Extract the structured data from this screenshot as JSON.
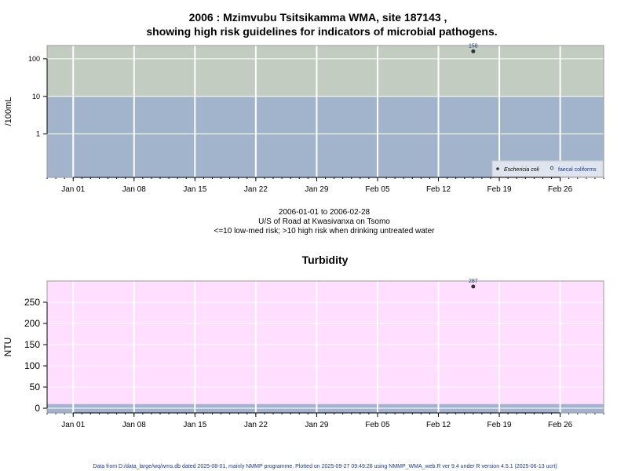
{
  "chart_data": [
    {
      "type": "scatter",
      "title": "2006 : Mzimvubu Tsitsikamma WMA, site 187143 ,",
      "subtitle": "showing high risk guidelines for indicators of microbial pathogens.",
      "ylabel": "/100mL",
      "yscale": "log",
      "ylim": [
        0.07,
        225
      ],
      "yticks": [
        1,
        10,
        100
      ],
      "xlim": [
        "2005-12-29",
        "2006-03-03"
      ],
      "xticks": [
        "Jan 01",
        "Jan 08",
        "Jan 15",
        "Jan 22",
        "Jan 29",
        "Feb 05",
        "Feb 12",
        "Feb 19",
        "Feb 26"
      ],
      "xtick_dates": [
        "2006-01-01",
        "2006-01-08",
        "2006-01-15",
        "2006-01-22",
        "2006-01-29",
        "2006-02-05",
        "2006-02-12",
        "2006-02-19",
        "2006-02-26"
      ],
      "bands": [
        {
          "from": 0.07,
          "to": 10,
          "color": "#a2b4cc"
        },
        {
          "from": 10,
          "to": 225,
          "color": "#c2ccc0"
        }
      ],
      "grid": true,
      "legend_placement": "bottom-right",
      "series": [
        {
          "name": "Eschericia coli",
          "marker": "filled-circle",
          "points": [
            {
              "x": "2006-02-16",
              "y": 158,
              "label": "158"
            }
          ]
        },
        {
          "name": "faecal coliforms",
          "marker": "open-circle",
          "points": []
        }
      ],
      "xlabel_lines": [
        "2006-01-01 to 2006-02-28",
        "U/S of Road at Kwasivanxa on Tsomo",
        "<=10 low-med risk; >10 high risk when drinking untreated water"
      ]
    },
    {
      "type": "scatter",
      "title": "Turbidity",
      "ylabel": "NTU",
      "ylim": [
        -11,
        300
      ],
      "yticks": [
        0,
        50,
        100,
        150,
        200,
        250
      ],
      "xlim": [
        "2005-12-29",
        "2006-03-03"
      ],
      "xticks": [
        "Jan 01",
        "Jan 08",
        "Jan 15",
        "Jan 22",
        "Jan 29",
        "Feb 05",
        "Feb 12",
        "Feb 19",
        "Feb 26"
      ],
      "xtick_dates": [
        "2006-01-01",
        "2006-01-08",
        "2006-01-15",
        "2006-01-22",
        "2006-01-29",
        "2006-02-05",
        "2006-02-12",
        "2006-02-19",
        "2006-02-26"
      ],
      "bands": [
        {
          "from": -11,
          "to": 10,
          "color": "#a2b4cc"
        },
        {
          "from": 10,
          "to": 300,
          "color": "#ffdeff"
        }
      ],
      "grid": true,
      "series": [
        {
          "marker": "filled-circle",
          "points": [
            {
              "x": "2006-02-16",
              "y": 287,
              "label": "287"
            }
          ]
        }
      ]
    }
  ],
  "footer": "Data from D:/data_large/wq/wms.db dated 2025-08-01, mainly NMMP programme. Plotted on 2025-09-27 09:49:28 using NMMP_WMA_web.R ver 9.4 under R version 4.5.1 (2025-06-13 ucrt)"
}
